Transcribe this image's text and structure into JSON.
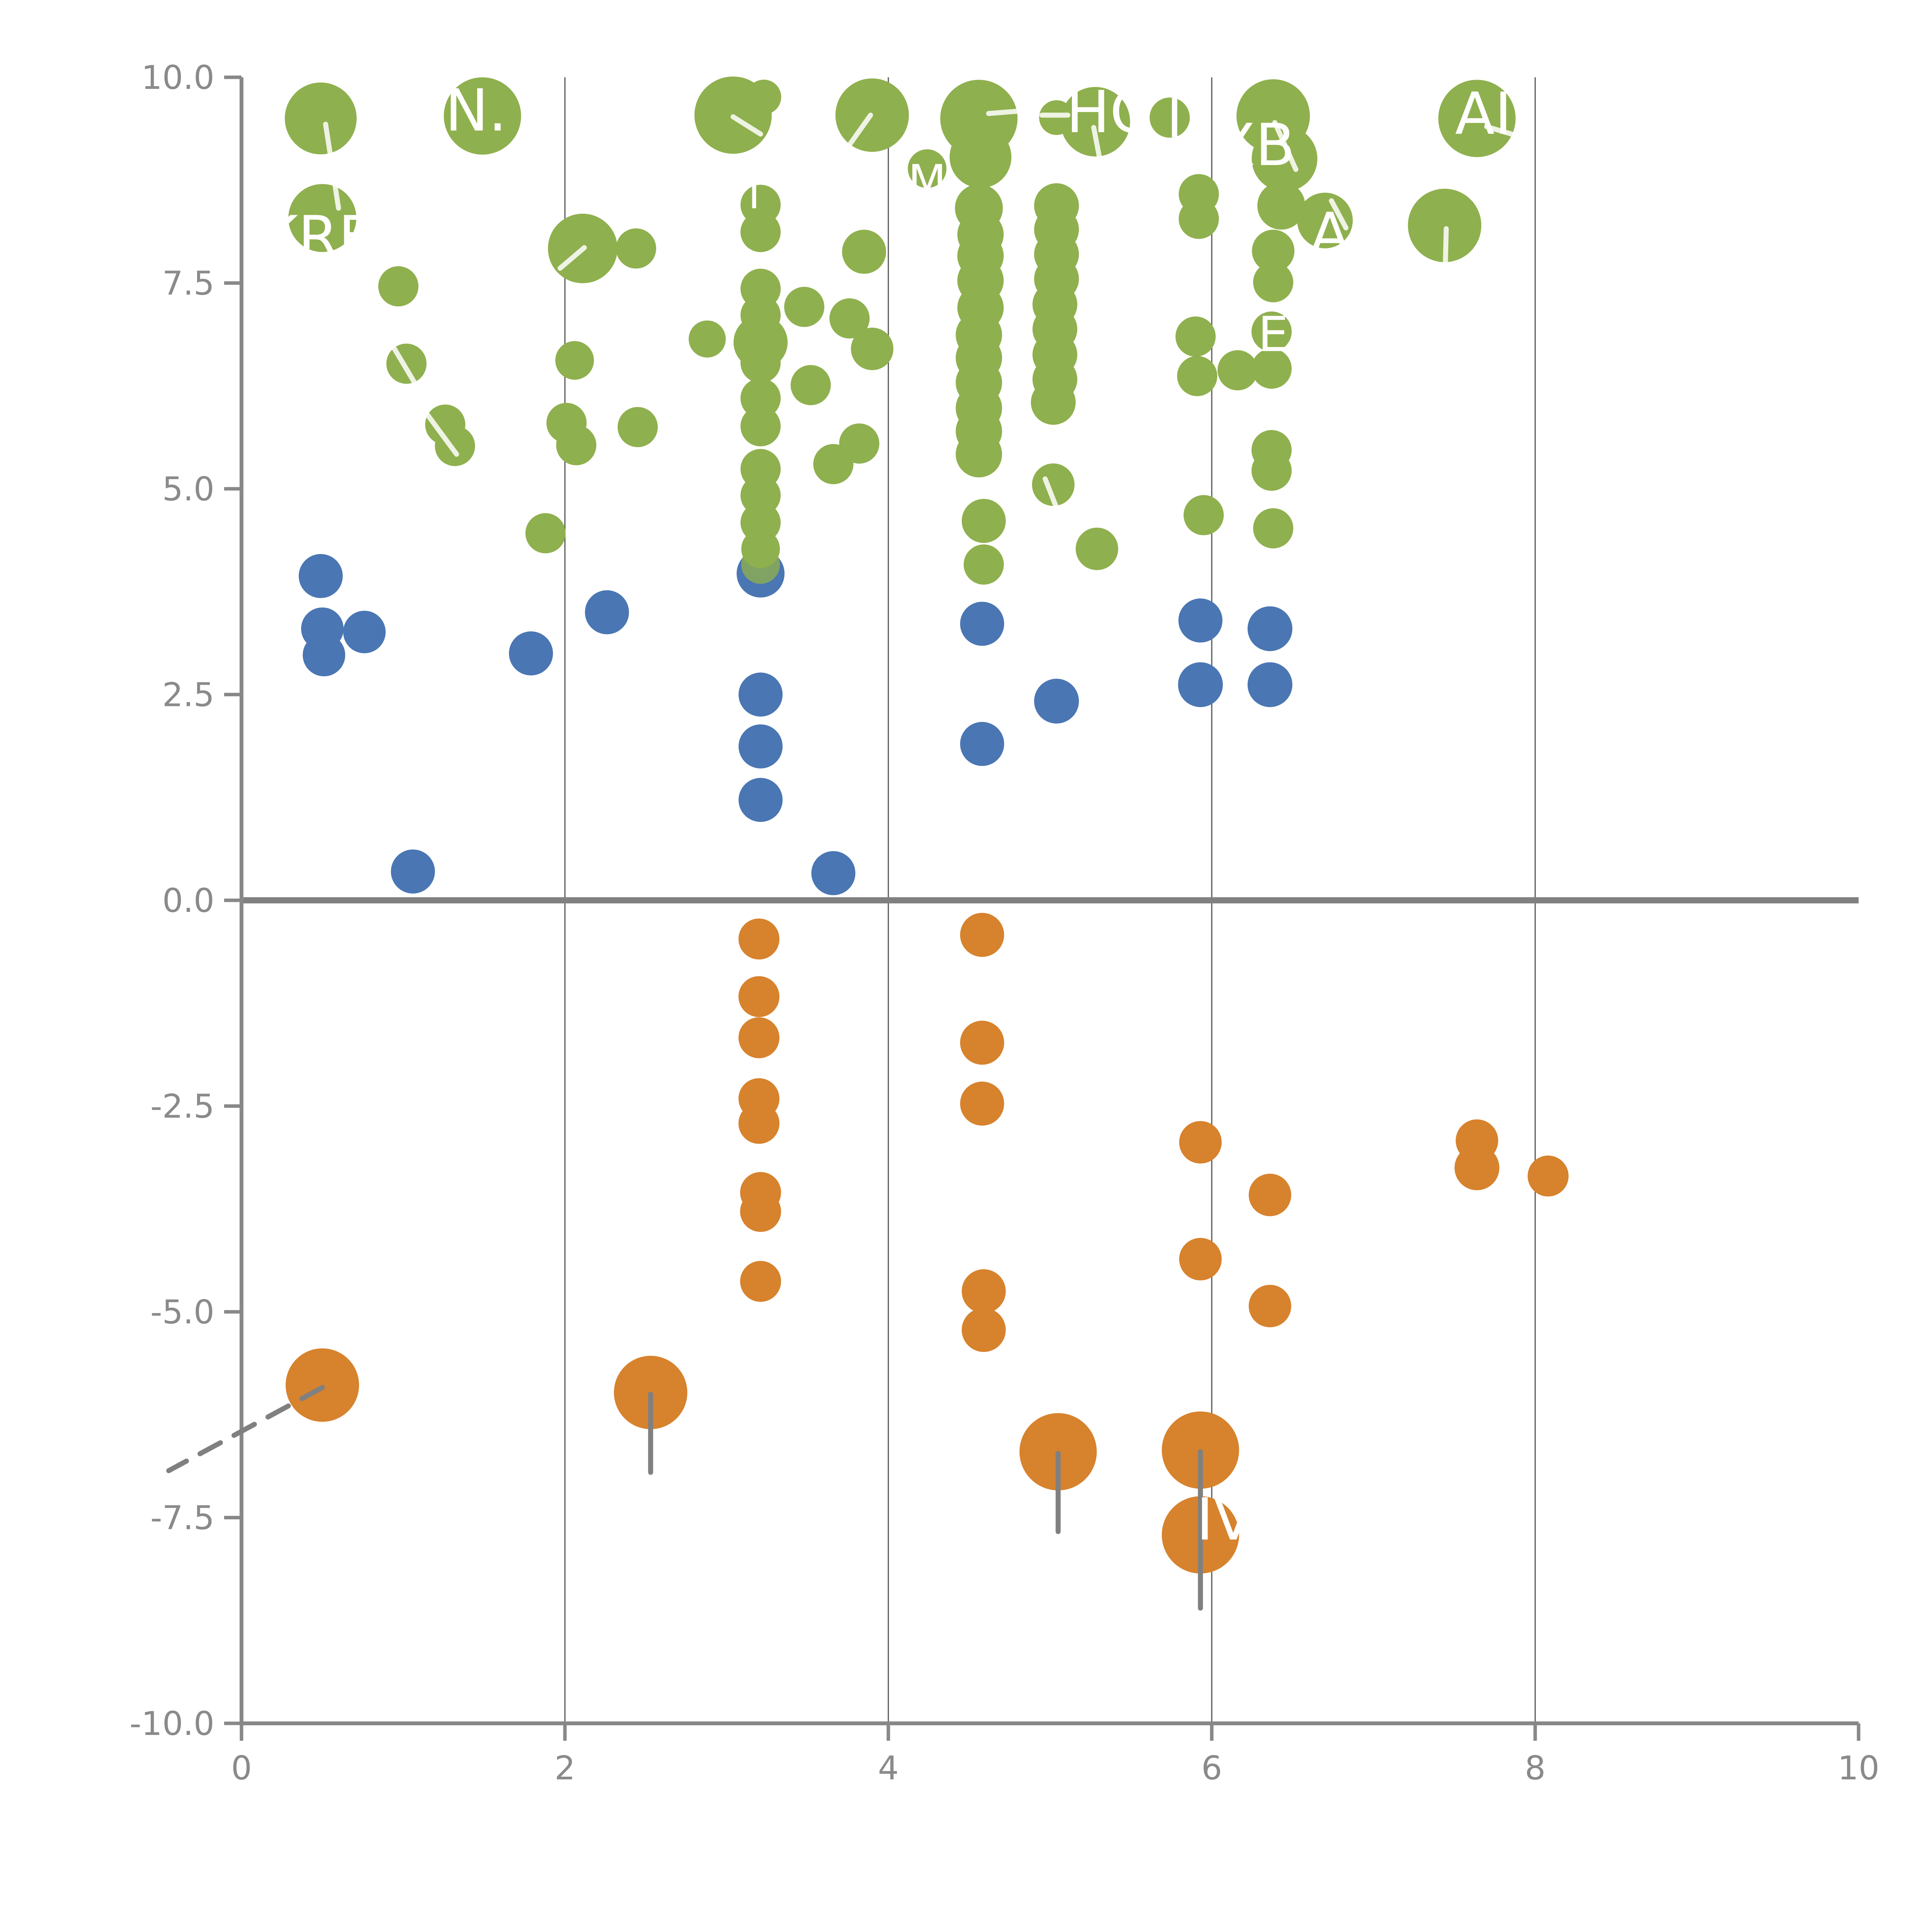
{
  "chart_data": {
    "type": "scatter",
    "title": "",
    "xlabel": "",
    "ylabel": "",
    "xlim": [
      0,
      10
    ],
    "ylim": [
      -10,
      10
    ],
    "x_ticks": [
      "0",
      "2",
      "4",
      "6",
      "8",
      "10"
    ],
    "x_tick_values": [
      0,
      2,
      4,
      6,
      8,
      10
    ],
    "y_ticks": [
      "10.0",
      "7.5",
      "5.0",
      "2.5",
      "0.0",
      "-2.5",
      "-5.0",
      "-7.5",
      "-10.0"
    ],
    "y_tick_values": [
      10,
      7.5,
      5,
      2.5,
      0,
      -2.5,
      -5,
      -7.5,
      -10
    ],
    "x_gridlines": [
      2,
      4,
      6,
      8
    ],
    "zero_line_y": 0,
    "grid": "vertical-only",
    "legend_position": "none",
    "colors": {
      "green": "#8fb04e",
      "blue": "#4a76b3",
      "orange": "#d7822d",
      "axis": "#888888",
      "tick_text": "#8a8a8a",
      "gridline": "#555555",
      "zero_line": "#808080",
      "leader_gray": "#808080",
      "label_text": "#ffffff"
    },
    "series": [
      {
        "name": "green-bubbles",
        "color_key": "green",
        "points": [
          {
            "x": 0.49,
            "y": 9.5,
            "r": 93
          },
          {
            "x": 1.49,
            "y": 9.53,
            "r": 100
          },
          {
            "x": 3.04,
            "y": 9.54,
            "r": 100
          },
          {
            "x": 3.23,
            "y": 9.76,
            "r": 45
          },
          {
            "x": 3.9,
            "y": 9.54,
            "r": 95
          },
          {
            "x": 4.56,
            "y": 9.5,
            "r": 100
          },
          {
            "x": 4.57,
            "y": 9.03,
            "r": 80
          },
          {
            "x": 5.04,
            "y": 9.51,
            "r": 45
          },
          {
            "x": 5.28,
            "y": 9.46,
            "r": 90
          },
          {
            "x": 5.74,
            "y": 9.51,
            "r": 52
          },
          {
            "x": 6.38,
            "y": 9.53,
            "r": 95
          },
          {
            "x": 6.45,
            "y": 9.01,
            "r": 85
          },
          {
            "x": 7.64,
            "y": 9.5,
            "r": 100
          },
          {
            "x": 0.5,
            "y": 8.29,
            "r": 88
          },
          {
            "x": 2.11,
            "y": 7.92,
            "r": 90
          },
          {
            "x": 2.44,
            "y": 7.92,
            "r": 52
          },
          {
            "x": 3.21,
            "y": 8.45,
            "r": 52
          },
          {
            "x": 3.21,
            "y": 8.12,
            "r": 52
          },
          {
            "x": 3.85,
            "y": 7.88,
            "r": 57
          },
          {
            "x": 4.24,
            "y": 8.89,
            "r": 50
          },
          {
            "x": 4.56,
            "y": 8.41,
            "r": 62
          },
          {
            "x": 5.92,
            "y": 8.58,
            "r": 52
          },
          {
            "x": 5.92,
            "y": 8.28,
            "r": 52
          },
          {
            "x": 6.43,
            "y": 8.44,
            "r": 62
          },
          {
            "x": 6.7,
            "y": 8.26,
            "r": 72
          },
          {
            "x": 7.44,
            "y": 8.2,
            "r": 95
          },
          {
            "x": 3.21,
            "y": 7.43,
            "r": 52
          },
          {
            "x": 3.21,
            "y": 7.11,
            "r": 52
          },
          {
            "x": 3.21,
            "y": 6.78,
            "r": 70
          },
          {
            "x": 3.21,
            "y": 6.53,
            "r": 52
          },
          {
            "x": 3.21,
            "y": 6.1,
            "r": 52
          },
          {
            "x": 3.21,
            "y": 5.76,
            "r": 52
          },
          {
            "x": 3.21,
            "y": 5.24,
            "r": 52
          },
          {
            "x": 3.21,
            "y": 4.92,
            "r": 52
          },
          {
            "x": 3.21,
            "y": 4.59,
            "r": 52
          },
          {
            "x": 3.21,
            "y": 4.27,
            "r": 50
          },
          {
            "x": 3.21,
            "y": 4.08,
            "r": 50,
            "op": 0.78
          },
          {
            "x": 4.57,
            "y": 8.09,
            "r": 60
          },
          {
            "x": 4.57,
            "y": 7.83,
            "r": 60
          },
          {
            "x": 4.57,
            "y": 7.53,
            "r": 60
          },
          {
            "x": 4.57,
            "y": 7.2,
            "r": 60
          },
          {
            "x": 4.56,
            "y": 6.87,
            "r": 60
          },
          {
            "x": 4.56,
            "y": 6.59,
            "r": 60
          },
          {
            "x": 4.56,
            "y": 6.29,
            "r": 60
          },
          {
            "x": 4.56,
            "y": 5.98,
            "r": 60
          },
          {
            "x": 4.56,
            "y": 5.7,
            "r": 60
          },
          {
            "x": 4.56,
            "y": 5.42,
            "r": 60
          },
          {
            "x": 4.59,
            "y": 4.61,
            "r": 57
          },
          {
            "x": 4.59,
            "y": 4.08,
            "r": 52
          },
          {
            "x": 5.04,
            "y": 8.44,
            "r": 58
          },
          {
            "x": 5.04,
            "y": 8.15,
            "r": 58
          },
          {
            "x": 5.04,
            "y": 7.85,
            "r": 58
          },
          {
            "x": 5.04,
            "y": 7.55,
            "r": 58
          },
          {
            "x": 5.03,
            "y": 7.24,
            "r": 58
          },
          {
            "x": 5.03,
            "y": 6.94,
            "r": 58
          },
          {
            "x": 5.03,
            "y": 6.63,
            "r": 58
          },
          {
            "x": 5.03,
            "y": 6.33,
            "r": 58
          },
          {
            "x": 5.02,
            "y": 6.05,
            "r": 58
          },
          {
            "x": 5.02,
            "y": 5.05,
            "r": 55
          },
          {
            "x": 5.29,
            "y": 4.27,
            "r": 55
          },
          {
            "x": 0.97,
            "y": 7.46,
            "r": 52
          },
          {
            "x": 1.02,
            "y": 6.52,
            "r": 52
          },
          {
            "x": 1.26,
            "y": 5.78,
            "r": 52
          },
          {
            "x": 1.32,
            "y": 5.52,
            "r": 52
          },
          {
            "x": 2.01,
            "y": 5.8,
            "r": 52
          },
          {
            "x": 2.07,
            "y": 5.53,
            "r": 52
          },
          {
            "x": 2.06,
            "y": 6.56,
            "r": 50
          },
          {
            "x": 2.45,
            "y": 5.75,
            "r": 52
          },
          {
            "x": 1.88,
            "y": 4.46,
            "r": 52
          },
          {
            "x": 2.88,
            "y": 6.82,
            "r": 48
          },
          {
            "x": 3.48,
            "y": 7.21,
            "r": 52
          },
          {
            "x": 3.76,
            "y": 7.07,
            "r": 52
          },
          {
            "x": 3.9,
            "y": 6.7,
            "r": 55
          },
          {
            "x": 3.52,
            "y": 6.26,
            "r": 52
          },
          {
            "x": 3.82,
            "y": 5.55,
            "r": 52
          },
          {
            "x": 3.66,
            "y": 5.3,
            "r": 52
          },
          {
            "x": 5.9,
            "y": 6.85,
            "r": 52
          },
          {
            "x": 5.91,
            "y": 6.37,
            "r": 52
          },
          {
            "x": 6.16,
            "y": 6.44,
            "r": 52
          },
          {
            "x": 6.37,
            "y": 6.46,
            "r": 52
          },
          {
            "x": 6.37,
            "y": 6.91,
            "r": 52
          },
          {
            "x": 6.38,
            "y": 7.51,
            "r": 52
          },
          {
            "x": 6.38,
            "y": 7.89,
            "r": 55
          },
          {
            "x": 6.37,
            "y": 5.47,
            "r": 52
          },
          {
            "x": 6.37,
            "y": 5.22,
            "r": 52
          },
          {
            "x": 5.95,
            "y": 4.68,
            "r": 52
          },
          {
            "x": 6.38,
            "y": 4.52,
            "r": 52
          }
        ]
      },
      {
        "name": "blue-bubbles",
        "color_key": "blue",
        "points": [
          {
            "x": 3.21,
            "y": 3.97,
            "r": 62
          },
          {
            "x": 0.49,
            "y": 3.94,
            "r": 57
          },
          {
            "x": 0.5,
            "y": 3.3,
            "r": 55
          },
          {
            "x": 0.76,
            "y": 3.26,
            "r": 55
          },
          {
            "x": 0.51,
            "y": 2.98,
            "r": 55
          },
          {
            "x": 1.79,
            "y": 3.0,
            "r": 57
          },
          {
            "x": 2.26,
            "y": 3.5,
            "r": 57
          },
          {
            "x": 1.06,
            "y": 0.35,
            "r": 57
          },
          {
            "x": 3.21,
            "y": 2.5,
            "r": 57
          },
          {
            "x": 3.21,
            "y": 1.87,
            "r": 57
          },
          {
            "x": 3.21,
            "y": 1.22,
            "r": 57
          },
          {
            "x": 3.66,
            "y": 0.33,
            "r": 57
          },
          {
            "x": 4.58,
            "y": 3.36,
            "r": 57
          },
          {
            "x": 5.04,
            "y": 2.42,
            "r": 58
          },
          {
            "x": 4.58,
            "y": 1.9,
            "r": 57
          },
          {
            "x": 5.93,
            "y": 3.4,
            "r": 57
          },
          {
            "x": 5.93,
            "y": 2.62,
            "r": 58
          },
          {
            "x": 6.36,
            "y": 3.3,
            "r": 58
          },
          {
            "x": 6.36,
            "y": 2.62,
            "r": 58
          }
        ]
      },
      {
        "name": "orange-bubbles",
        "color_key": "orange",
        "points": [
          {
            "x": 3.2,
            "y": -0.47,
            "r": 53
          },
          {
            "x": 3.2,
            "y": -1.17,
            "r": 53
          },
          {
            "x": 3.2,
            "y": -1.67,
            "r": 53
          },
          {
            "x": 3.2,
            "y": -2.41,
            "r": 53
          },
          {
            "x": 3.2,
            "y": -2.71,
            "r": 53
          },
          {
            "x": 3.21,
            "y": -3.55,
            "r": 53
          },
          {
            "x": 3.21,
            "y": -3.78,
            "r": 53
          },
          {
            "x": 3.21,
            "y": -4.63,
            "r": 53
          },
          {
            "x": 4.58,
            "y": -0.42,
            "r": 57
          },
          {
            "x": 4.58,
            "y": -1.73,
            "r": 57
          },
          {
            "x": 4.58,
            "y": -2.47,
            "r": 57
          },
          {
            "x": 4.59,
            "y": -4.75,
            "r": 57
          },
          {
            "x": 4.59,
            "y": -5.22,
            "r": 57
          },
          {
            "x": 5.93,
            "y": -2.94,
            "r": 55
          },
          {
            "x": 6.36,
            "y": -3.58,
            "r": 55
          },
          {
            "x": 5.93,
            "y": -4.36,
            "r": 55
          },
          {
            "x": 6.36,
            "y": -4.93,
            "r": 55
          },
          {
            "x": 7.64,
            "y": -2.92,
            "r": 55
          },
          {
            "x": 7.64,
            "y": -3.25,
            "r": 58
          },
          {
            "x": 8.08,
            "y": -3.35,
            "r": 53
          },
          {
            "x": 0.5,
            "y": -5.89,
            "r": 95
          },
          {
            "x": 2.53,
            "y": -5.98,
            "r": 95
          },
          {
            "x": 5.05,
            "y": -6.7,
            "r": 100
          },
          {
            "x": 5.93,
            "y": -6.68,
            "r": 100
          },
          {
            "x": 5.93,
            "y": -7.71,
            "r": 100
          }
        ]
      }
    ],
    "annotations": [
      {
        "text": "N.",
        "x": 1.45,
        "y": 9.6,
        "size": 150
      },
      {
        "text": "KRF",
        "x": 0.46,
        "y": 8.06,
        "size": 150
      },
      {
        "text": "HC",
        "x": 5.36,
        "y": 9.58,
        "size": 150
      },
      {
        "text": "I",
        "x": 5.77,
        "y": 9.5,
        "size": 140
      },
      {
        "text": "XB",
        "x": 6.27,
        "y": 9.18,
        "size": 150
      },
      {
        "text": "A",
        "x": 6.73,
        "y": 8.1,
        "size": 150
      },
      {
        "text": "AI",
        "x": 7.68,
        "y": 9.56,
        "size": 150
      },
      {
        "text": "M",
        "x": 4.24,
        "y": 8.74,
        "size": 115
      },
      {
        "text": "E",
        "x": 6.38,
        "y": 6.88,
        "size": 125
      },
      {
        "text": "T",
        "x": 3.17,
        "y": 8.58,
        "size": 105
      },
      {
        "text": "IV",
        "x": 6.08,
        "y": -7.52,
        "size": 150
      }
    ],
    "leader_lines_white": [
      {
        "x1": 0.52,
        "y1": 9.43,
        "x2": 0.6,
        "y2": 8.41
      },
      {
        "x1": 3.04,
        "y1": 9.52,
        "x2": 3.21,
        "y2": 9.31
      },
      {
        "x1": 3.76,
        "y1": 9.18,
        "x2": 3.89,
        "y2": 9.54
      },
      {
        "x1": 4.62,
        "y1": 9.56,
        "x2": 4.88,
        "y2": 9.6
      },
      {
        "x1": 4.95,
        "y1": 9.54,
        "x2": 5.11,
        "y2": 9.54
      },
      {
        "x1": 5.27,
        "y1": 9.39,
        "x2": 5.31,
        "y2": 8.98
      },
      {
        "x1": 6.39,
        "y1": 9.45,
        "x2": 6.52,
        "y2": 8.88
      },
      {
        "x1": 7.7,
        "y1": 9.4,
        "x2": 7.94,
        "y2": 9.26
      },
      {
        "x1": 1.97,
        "y1": 7.68,
        "x2": 2.12,
        "y2": 7.93
      },
      {
        "x1": 7.45,
        "y1": 8.16,
        "x2": 7.44,
        "y2": 7.37
      },
      {
        "x1": 0.94,
        "y1": 6.72,
        "x2": 1.07,
        "y2": 6.29
      },
      {
        "x1": 1.15,
        "y1": 5.9,
        "x2": 1.33,
        "y2": 5.42
      },
      {
        "x1": 4.97,
        "y1": 5.12,
        "x2": 5.07,
        "y2": 4.62
      },
      {
        "x1": 6.74,
        "y1": 8.5,
        "x2": 6.83,
        "y2": 8.17
      }
    ],
    "leader_lines_gray": [
      {
        "x1": 0.5,
        "y1": -5.92,
        "x2": -0.45,
        "y2": -6.93,
        "dashed": true
      },
      {
        "x1": 2.53,
        "y1": -6.0,
        "x2": 2.53,
        "y2": -6.95,
        "dashed": false
      },
      {
        "x1": 5.05,
        "y1": -6.72,
        "x2": 5.05,
        "y2": -7.67,
        "dashed": false
      },
      {
        "x1": 5.93,
        "y1": -6.7,
        "x2": 5.93,
        "y2": -8.6,
        "dashed": false
      }
    ]
  }
}
